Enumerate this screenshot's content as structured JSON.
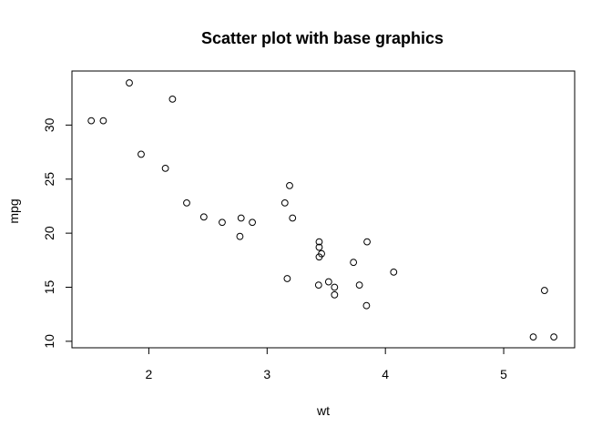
{
  "chart_data": {
    "type": "scatter",
    "title": "Scatter plot with base graphics",
    "xlabel": "wt",
    "ylabel": "mpg",
    "xlim": [
      1.35,
      5.6
    ],
    "ylim": [
      9.4,
      35.0
    ],
    "xticks": [
      2,
      3,
      4,
      5
    ],
    "yticks": [
      10,
      15,
      20,
      25,
      30
    ],
    "grid": false,
    "legend": "none",
    "points": [
      [
        2.62,
        21.0
      ],
      [
        2.875,
        21.0
      ],
      [
        2.32,
        22.8
      ],
      [
        3.215,
        21.4
      ],
      [
        3.44,
        18.7
      ],
      [
        3.46,
        18.1
      ],
      [
        3.57,
        14.3
      ],
      [
        3.19,
        24.4
      ],
      [
        3.15,
        22.8
      ],
      [
        3.44,
        19.2
      ],
      [
        3.44,
        17.8
      ],
      [
        4.07,
        16.4
      ],
      [
        3.73,
        17.3
      ],
      [
        3.78,
        15.2
      ],
      [
        5.25,
        10.4
      ],
      [
        5.424,
        10.4
      ],
      [
        5.345,
        14.7
      ],
      [
        2.2,
        32.4
      ],
      [
        1.615,
        30.4
      ],
      [
        1.835,
        33.9
      ],
      [
        2.465,
        21.5
      ],
      [
        3.52,
        15.5
      ],
      [
        3.435,
        15.2
      ],
      [
        3.84,
        13.3
      ],
      [
        3.845,
        19.2
      ],
      [
        1.935,
        27.3
      ],
      [
        2.14,
        26.0
      ],
      [
        1.513,
        30.4
      ],
      [
        3.17,
        15.8
      ],
      [
        2.77,
        19.7
      ],
      [
        3.57,
        15.0
      ],
      [
        2.78,
        21.4
      ]
    ]
  }
}
